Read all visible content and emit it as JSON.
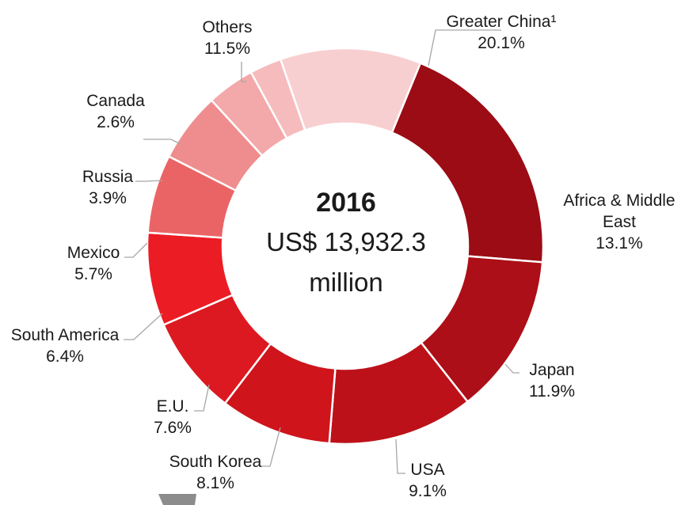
{
  "chart_data": {
    "type": "pie",
    "style": "donut",
    "center": {
      "year": "2016",
      "line1": "US$ 13,932.3",
      "line2": "million"
    },
    "slices": [
      {
        "name": "Greater China¹",
        "name_lines": [
          "Greater China¹"
        ],
        "value": 20.1,
        "label": "20.1%",
        "color": "#9b0c15"
      },
      {
        "name": "Africa & Middle East",
        "name_lines": [
          "Africa & Middle",
          "East"
        ],
        "value": 13.1,
        "label": "13.1%",
        "color": "#ac0f17"
      },
      {
        "name": "Japan",
        "name_lines": [
          "Japan"
        ],
        "value": 11.9,
        "label": "11.9%",
        "color": "#bd1119"
      },
      {
        "name": "USA",
        "name_lines": [
          "USA"
        ],
        "value": 9.1,
        "label": "9.1%",
        "color": "#cf141c"
      },
      {
        "name": "South Korea",
        "name_lines": [
          "South Korea"
        ],
        "value": 8.1,
        "label": "8.1%",
        "color": "#dc1921"
      },
      {
        "name": "E.U.",
        "name_lines": [
          "E.U."
        ],
        "value": 7.6,
        "label": "7.6%",
        "color": "#ec1c24"
      },
      {
        "name": "South America",
        "name_lines": [
          "South America"
        ],
        "value": 6.4,
        "label": "6.4%",
        "color": "#ea6466"
      },
      {
        "name": "Mexico",
        "name_lines": [
          "Mexico"
        ],
        "value": 5.7,
        "label": "5.7%",
        "color": "#ef8d8e"
      },
      {
        "name": "Russia",
        "name_lines": [
          "Russia"
        ],
        "value": 3.9,
        "label": "3.9%",
        "color": "#f3a8a9"
      },
      {
        "name": "Canada",
        "name_lines": [
          "Canada"
        ],
        "value": 2.6,
        "label": "2.6%",
        "color": "#f6bcbd"
      },
      {
        "name": "Others",
        "name_lines": [
          "Others"
        ],
        "value": 11.5,
        "label": "11.5%",
        "color": "#f8cfd0"
      }
    ]
  }
}
